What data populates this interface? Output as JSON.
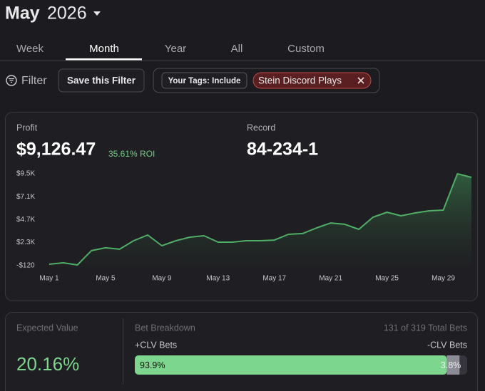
{
  "header": {
    "month": "May",
    "year": "2026"
  },
  "tabs": [
    "Week",
    "Month",
    "Year",
    "All",
    "Custom"
  ],
  "selected_tab": 1,
  "filter": {
    "label": "Filter",
    "save_button": "Save this Filter",
    "tags_label": "Your Tags: Include",
    "tag": "Stein Discord Plays"
  },
  "profit": {
    "label": "Profit",
    "value": "$9,126.47",
    "roi": "35.61% ROI"
  },
  "record": {
    "label": "Record",
    "value": "84-234-1"
  },
  "expected_value": {
    "label": "Expected Value",
    "value": "20.16%"
  },
  "bet_breakdown": {
    "title": "Bet Breakdown",
    "total": "131 of 319 Total Bets",
    "left_label": "+CLV Bets",
    "right_label": "-CLV Bets",
    "values": [
      93.9,
      3.8
    ],
    "value_labels": [
      "93.9%",
      "3.8%"
    ],
    "colors": [
      "#7dd68d",
      "#8c8c96"
    ],
    "xlim": [
      0,
      100
    ]
  },
  "chart_data": {
    "type": "area",
    "categories": [
      "May 1",
      null,
      null,
      null,
      "May 5",
      null,
      null,
      null,
      "May 9",
      null,
      null,
      null,
      "May 13",
      null,
      null,
      null,
      "May 17",
      null,
      null,
      null,
      "May 21",
      null,
      null,
      null,
      "May 25",
      null,
      null,
      null,
      "May 29",
      null,
      null
    ],
    "values": [
      30,
      180,
      -45,
      1450,
      1750,
      1600,
      2490,
      3090,
      1970,
      2490,
      2860,
      3010,
      2340,
      2340,
      2490,
      2490,
      2560,
      3160,
      3240,
      3830,
      4350,
      4210,
      3680,
      4950,
      5470,
      5100,
      5400,
      5620,
      5700,
      9500,
      9126.47
    ],
    "color": "#4fae66",
    "ylim": [
      -120,
      9500
    ],
    "yticks": [
      {
        "value": 9500,
        "label": "$9.5K"
      },
      {
        "value": 7100,
        "label": "$7.1K"
      },
      {
        "value": 4700,
        "label": "$4.7K"
      },
      {
        "value": 2300,
        "label": "$2.3K"
      },
      {
        "value": -120,
        "label": "-$120"
      }
    ]
  }
}
